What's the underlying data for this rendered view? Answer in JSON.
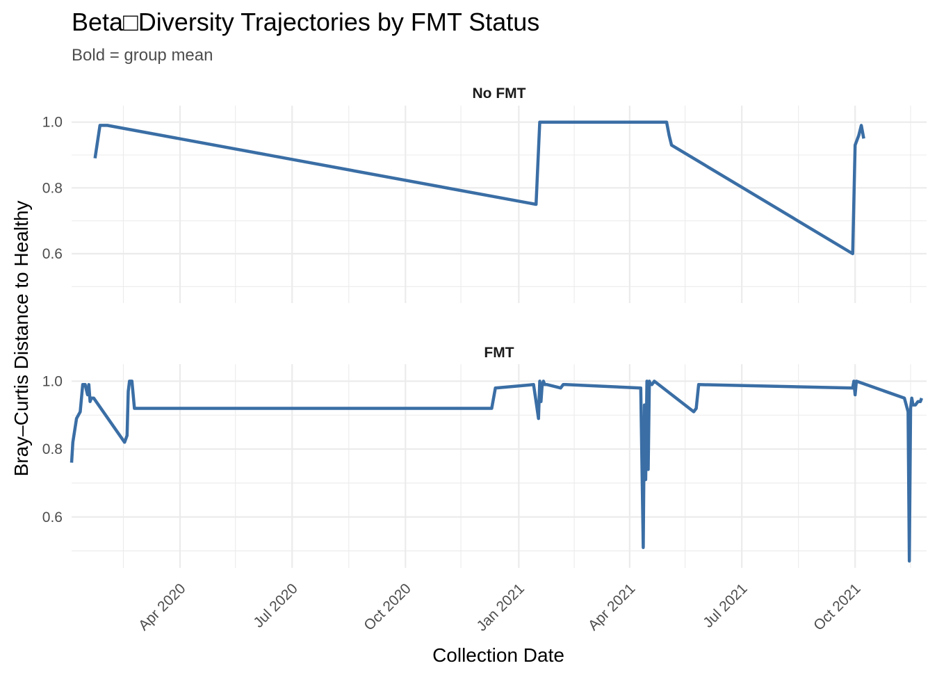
{
  "chart_data": {
    "type": "line",
    "title": "Beta□Diversity Trajectories by FMT Status",
    "subtitle": "Bold = group mean",
    "xlabel": "Collection Date",
    "ylabel": "Bray–Curtis Distance to Healthy",
    "x_type": "date",
    "xlim": [
      "2020-01-04",
      "2021-11-28"
    ],
    "ylim": [
      0.45,
      1.05
    ],
    "x_ticks": [
      {
        "date": "2020-04-01",
        "label": "Apr 2020"
      },
      {
        "date": "2020-07-01",
        "label": "Jul 2020"
      },
      {
        "date": "2020-10-01",
        "label": "Oct 2020"
      },
      {
        "date": "2021-01-01",
        "label": "Jan 2021"
      },
      {
        "date": "2021-04-01",
        "label": "Apr 2021"
      },
      {
        "date": "2021-07-01",
        "label": "Jul 2021"
      },
      {
        "date": "2021-10-01",
        "label": "Oct 2021"
      }
    ],
    "x_minor_ticks": [
      "2020-02-15",
      "2020-05-16",
      "2020-08-16",
      "2020-11-15",
      "2021-02-15",
      "2021-05-16",
      "2021-08-16",
      "2021-11-15"
    ],
    "y_ticks": [
      0.6,
      0.8,
      1.0
    ],
    "y_tick_labels": [
      "0.6",
      "0.8",
      "1.0"
    ],
    "y_minor_ticks": [
      0.5,
      0.7,
      0.9
    ],
    "grid": true,
    "legend": "none",
    "color": "#3A6EA5",
    "panels": [
      {
        "strip": "No FMT",
        "x": [
          "2020-01-23",
          "2020-01-27",
          "2020-01-30",
          "2020-02-02",
          "2021-01-15",
          "2021-01-18",
          "2021-01-21",
          "2021-05-01",
          "2021-05-03",
          "2021-05-05",
          "2021-09-29",
          "2021-10-01",
          "2021-10-04",
          "2021-10-06",
          "2021-10-08"
        ],
        "y": [
          0.89,
          0.99,
          0.99,
          0.99,
          0.75,
          1.0,
          1.0,
          1.0,
          0.96,
          0.93,
          0.6,
          0.93,
          0.96,
          0.99,
          0.95
        ]
      },
      {
        "strip": "FMT",
        "x": [
          "2020-01-04",
          "2020-01-05",
          "2020-01-08",
          "2020-01-11",
          "2020-01-13",
          "2020-01-15",
          "2020-01-17",
          "2020-01-18",
          "2020-01-19",
          "2020-01-20",
          "2020-01-22",
          "2020-02-16",
          "2020-02-18",
          "2020-02-19",
          "2020-02-20",
          "2020-02-22",
          "2020-02-24",
          "2020-12-10",
          "2020-12-13",
          "2021-01-13",
          "2021-01-15",
          "2021-01-17",
          "2021-01-18",
          "2021-01-19",
          "2021-01-20",
          "2021-01-21",
          "2021-01-22",
          "2021-01-24",
          "2021-02-04",
          "2021-02-06",
          "2021-02-08",
          "2021-04-10",
          "2021-04-12",
          "2021-04-13",
          "2021-04-14",
          "2021-04-15",
          "2021-04-16",
          "2021-04-17",
          "2021-04-18",
          "2021-04-19",
          "2021-04-21",
          "2021-05-23",
          "2021-05-25",
          "2021-05-27",
          "2021-09-29",
          "2021-09-30",
          "2021-10-01",
          "2021-10-02",
          "2021-11-10",
          "2021-11-13",
          "2021-11-14",
          "2021-11-15",
          "2021-11-16",
          "2021-11-17",
          "2021-11-19",
          "2021-11-21",
          "2021-11-23",
          "2021-11-24"
        ],
        "y": [
          0.76,
          0.82,
          0.89,
          0.91,
          0.99,
          0.99,
          0.96,
          0.99,
          0.94,
          0.95,
          0.95,
          0.82,
          0.84,
          0.97,
          1.0,
          1.0,
          0.92,
          0.92,
          0.98,
          0.99,
          0.94,
          0.89,
          1.0,
          0.94,
          0.99,
          1.0,
          0.99,
          0.99,
          0.98,
          0.99,
          0.99,
          0.98,
          0.51,
          0.93,
          0.71,
          1.0,
          0.74,
          1.0,
          0.99,
          0.99,
          1.0,
          0.91,
          0.92,
          0.99,
          0.98,
          1.0,
          0.96,
          1.0,
          0.95,
          0.91,
          0.47,
          0.92,
          0.95,
          0.93,
          0.93,
          0.94,
          0.94,
          0.95
        ]
      }
    ]
  }
}
